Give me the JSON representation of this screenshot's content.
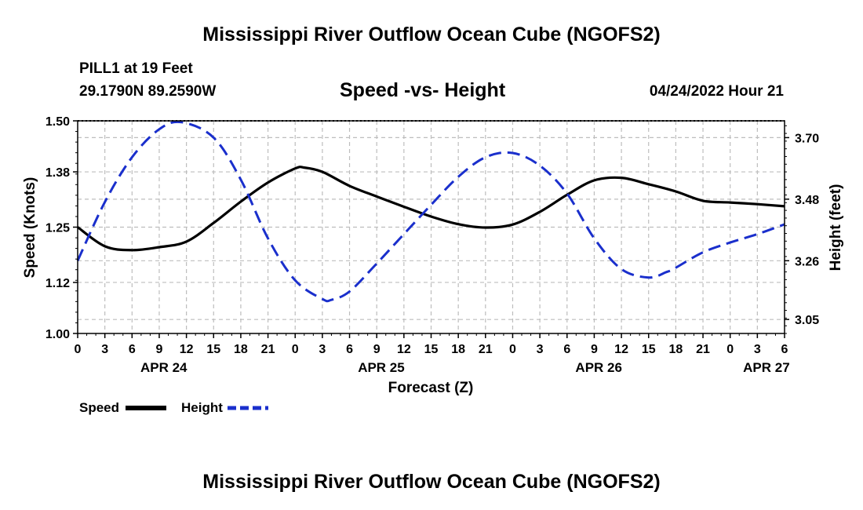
{
  "page": {
    "title": "Mississippi River Outflow Ocean Cube (NGOFS2)",
    "footer_title": "Mississippi River Outflow Ocean Cube (NGOFS2)",
    "station": "PILL1 at 19 Feet",
    "location": "29.1790N  89.2590W",
    "datetime": "04/24/2022 Hour 21"
  },
  "chart_data": {
    "type": "line",
    "title": "Speed -vs- Height",
    "xlabel": "Forecast (Z)",
    "ylabel": "Speed (Knots)",
    "y2label": "Height (feet)",
    "ylim": [
      1.0,
      1.5
    ],
    "y2lim": [
      3.0,
      3.76
    ],
    "yticks": [
      1.0,
      1.12,
      1.25,
      1.38,
      1.5
    ],
    "ytick_labels": [
      "1.00",
      "1.12",
      "1.25",
      "1.38",
      "1.50"
    ],
    "y2ticks": [
      3.05,
      3.26,
      3.48,
      3.7
    ],
    "y2tick_labels": [
      "3.05",
      "3.26",
      "3.48",
      "3.70"
    ],
    "x_range_hours": [
      0,
      78
    ],
    "x_ticks": [
      0,
      3,
      6,
      9,
      12,
      15,
      18,
      21,
      24,
      27,
      30,
      33,
      36,
      39,
      42,
      45,
      48,
      51,
      54,
      57,
      60,
      63,
      66,
      69,
      72,
      75,
      78
    ],
    "x_tick_labels": [
      "0",
      "3",
      "6",
      "9",
      "12",
      "15",
      "18",
      "21",
      "0",
      "3",
      "6",
      "9",
      "12",
      "15",
      "18",
      "21",
      "0",
      "3",
      "6",
      "9",
      "12",
      "15",
      "18",
      "21",
      "0",
      "3",
      "6"
    ],
    "date_labels": [
      {
        "text": "APR 24",
        "at": 9.5
      },
      {
        "text": "APR 25",
        "at": 33.5
      },
      {
        "text": "APR 26",
        "at": 57.5
      },
      {
        "text": "APR 27",
        "at": 76
      }
    ],
    "grid": true,
    "series": [
      {
        "name": "Speed",
        "axis": "left",
        "color": "#000000",
        "style": "solid",
        "x": [
          0,
          3,
          6,
          9,
          12,
          15,
          18,
          21,
          24,
          25,
          27,
          30,
          33,
          36,
          39,
          42,
          45,
          48,
          51,
          54,
          57,
          60,
          63,
          66,
          69,
          72,
          75,
          78
        ],
        "values": [
          1.25,
          1.205,
          1.196,
          1.203,
          1.216,
          1.26,
          1.31,
          1.355,
          1.388,
          1.39,
          1.38,
          1.347,
          1.322,
          1.298,
          1.275,
          1.257,
          1.249,
          1.256,
          1.286,
          1.326,
          1.36,
          1.366,
          1.351,
          1.334,
          1.312,
          1.308,
          1.304,
          1.299
        ]
      },
      {
        "name": "Height",
        "axis": "right",
        "color": "#1a2fcc",
        "style": "dashed",
        "x": [
          0,
          3,
          6,
          9,
          11.5,
          15,
          18,
          21,
          24,
          27,
          28,
          30,
          33,
          36,
          39,
          42,
          45,
          48,
          51,
          54,
          57,
          60,
          63,
          65,
          66,
          69,
          72,
          75,
          78
        ],
        "values": [
          3.26,
          3.47,
          3.63,
          3.73,
          3.755,
          3.7,
          3.55,
          3.34,
          3.19,
          3.123,
          3.12,
          3.15,
          3.25,
          3.355,
          3.46,
          3.56,
          3.63,
          3.645,
          3.6,
          3.5,
          3.34,
          3.23,
          3.2,
          3.22,
          3.235,
          3.29,
          3.325,
          3.355,
          3.39
        ]
      }
    ],
    "legend": [
      {
        "label": "Speed",
        "color": "#000000",
        "style": "solid"
      },
      {
        "label": "Height",
        "color": "#1a2fcc",
        "style": "dashed"
      }
    ]
  }
}
